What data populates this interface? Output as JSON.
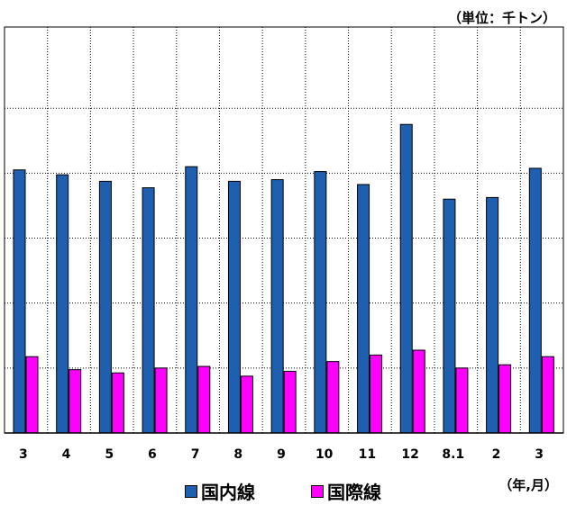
{
  "chart_data": {
    "type": "bar",
    "unit_label": "（単位：千トン）",
    "x_unit_label": "（年,月）",
    "categories": [
      "3",
      "4",
      "5",
      "6",
      "7",
      "8",
      "9",
      "10",
      "11",
      "12",
      "8.1",
      "2",
      "3"
    ],
    "series": [
      {
        "name": "国内線",
        "color": "#1f5fb0",
        "values": [
          81,
          79.5,
          77.5,
          75.5,
          82,
          77.5,
          78,
          80.5,
          76.5,
          95,
          72,
          72.5,
          81.5
        ]
      },
      {
        "name": "国際線",
        "color": "#ff00ff",
        "values": [
          23.5,
          19.5,
          18.5,
          20,
          20.5,
          17.5,
          19,
          22,
          24,
          25.5,
          20,
          21,
          23.5
        ]
      }
    ],
    "ylim": [
      0,
      125
    ],
    "y_gridlines": [
      20,
      40,
      60,
      80,
      100
    ],
    "grid": true,
    "legend_position": "bottom"
  }
}
